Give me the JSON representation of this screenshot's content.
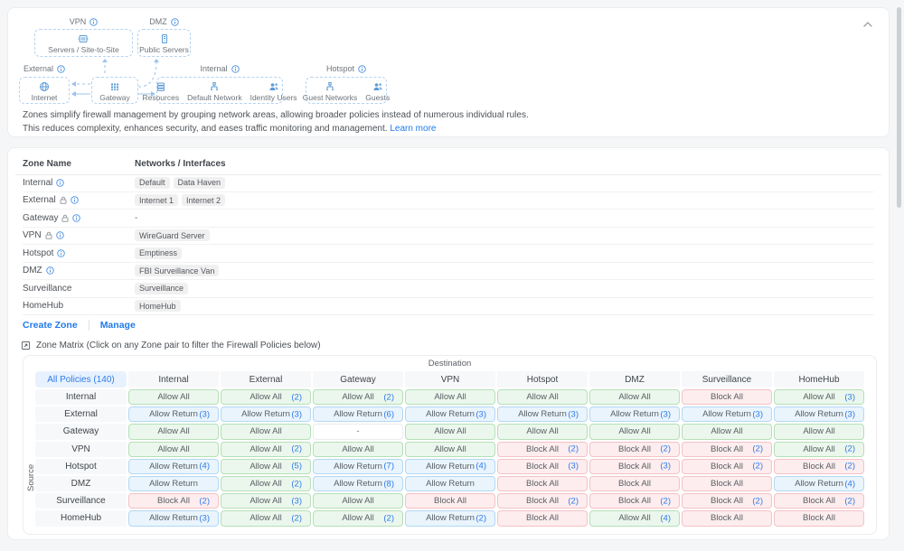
{
  "colors": {
    "accent": "#1f7aec",
    "allow_bg": "#ebf7ec",
    "allow_border": "#b5dfb8",
    "return_bg": "#e9f4fc",
    "return_border": "#b3d7f3",
    "block_bg": "#fdedee",
    "block_border": "#f3c2c6",
    "chip_bg": "#f0f0f1"
  },
  "diagram": {
    "gateway_label": "Gateway",
    "zones": [
      {
        "label": "VPN",
        "items": [
          {
            "name": "Servers / Site-to-Site",
            "icon": "vpn-server-icon"
          }
        ]
      },
      {
        "label": "DMZ",
        "items": [
          {
            "name": "Public Servers",
            "icon": "public-server-icon"
          }
        ]
      },
      {
        "label": "External",
        "items": [
          {
            "name": "Internet",
            "icon": "globe-icon"
          }
        ]
      },
      {
        "label": "Internal",
        "items": [
          {
            "name": "Resources",
            "icon": "resources-icon"
          },
          {
            "name": "Default Network",
            "icon": "network-icon"
          },
          {
            "name": "Identity Users",
            "icon": "users-icon"
          }
        ]
      },
      {
        "label": "Hotspot",
        "items": [
          {
            "name": "Guest Networks",
            "icon": "network-icon"
          },
          {
            "name": "Guests",
            "icon": "users-icon"
          }
        ]
      }
    ]
  },
  "description": {
    "line1": "Zones simplify firewall management by grouping network areas, allowing broader policies instead of numerous individual rules.",
    "line2": "This reduces complexity, enhances security, and eases traffic monitoring and management.",
    "learn_more": "Learn more"
  },
  "zone_table": {
    "columns": [
      "Zone Name",
      "Networks / Interfaces"
    ],
    "rows": [
      {
        "name": "Internal",
        "lock": false,
        "info": true,
        "networks": [
          "Default",
          "Data Haven"
        ]
      },
      {
        "name": "External",
        "lock": true,
        "info": true,
        "networks": [
          "Internet 1",
          "Internet 2"
        ]
      },
      {
        "name": "Gateway",
        "lock": true,
        "info": true,
        "networks": [],
        "empty": "-"
      },
      {
        "name": "VPN",
        "lock": true,
        "info": true,
        "networks": [
          "WireGuard Server"
        ]
      },
      {
        "name": "Hotspot",
        "lock": false,
        "info": true,
        "networks": [
          "Emptiness"
        ]
      },
      {
        "name": "DMZ",
        "lock": false,
        "info": true,
        "networks": [
          "FBI Surveillance Van"
        ]
      },
      {
        "name": "Surveillance",
        "lock": false,
        "info": false,
        "networks": [
          "Surveillance"
        ]
      },
      {
        "name": "HomeHub",
        "lock": false,
        "info": false,
        "networks": [
          "HomeHub"
        ]
      }
    ],
    "actions": {
      "create": "Create Zone",
      "manage": "Manage"
    }
  },
  "matrix": {
    "title": "Zone Matrix (Click on any Zone pair to filter the Firewall Policies below)",
    "destination_label": "Destination",
    "source_label": "Source",
    "all_policies": "All Policies (140)",
    "columns": [
      "Internal",
      "External",
      "Gateway",
      "VPN",
      "Hotspot",
      "DMZ",
      "Surveillance",
      "HomeHub"
    ],
    "rows": [
      {
        "source": "Internal",
        "cells": [
          {
            "label": "Allow All",
            "type": "allow"
          },
          {
            "label": "Allow All",
            "type": "allow",
            "count": "(2)"
          },
          {
            "label": "Allow All",
            "type": "allow",
            "count": "(2)"
          },
          {
            "label": "Allow All",
            "type": "allow"
          },
          {
            "label": "Allow All",
            "type": "allow"
          },
          {
            "label": "Allow All",
            "type": "allow"
          },
          {
            "label": "Block All",
            "type": "block"
          },
          {
            "label": "Allow All",
            "type": "allow",
            "count": "(3)"
          }
        ]
      },
      {
        "source": "External",
        "cells": [
          {
            "label": "Allow Return",
            "type": "return",
            "count": "(3)"
          },
          {
            "label": "Allow Return",
            "type": "return",
            "count": "(3)"
          },
          {
            "label": "Allow Return",
            "type": "return",
            "count": "(6)"
          },
          {
            "label": "Allow Return",
            "type": "return",
            "count": "(3)"
          },
          {
            "label": "Allow Return",
            "type": "return",
            "count": "(3)"
          },
          {
            "label": "Allow Return",
            "type": "return",
            "count": "(3)"
          },
          {
            "label": "Allow Return",
            "type": "return",
            "count": "(3)"
          },
          {
            "label": "Allow Return",
            "type": "return",
            "count": "(3)"
          }
        ]
      },
      {
        "source": "Gateway",
        "cells": [
          {
            "label": "Allow All",
            "type": "allow"
          },
          {
            "label": "Allow All",
            "type": "allow"
          },
          {
            "label": "-",
            "type": "none"
          },
          {
            "label": "Allow All",
            "type": "allow"
          },
          {
            "label": "Allow All",
            "type": "allow"
          },
          {
            "label": "Allow All",
            "type": "allow"
          },
          {
            "label": "Allow All",
            "type": "allow"
          },
          {
            "label": "Allow All",
            "type": "allow"
          }
        ]
      },
      {
        "source": "VPN",
        "cells": [
          {
            "label": "Allow All",
            "type": "allow"
          },
          {
            "label": "Allow All",
            "type": "allow",
            "count": "(2)"
          },
          {
            "label": "Allow All",
            "type": "allow"
          },
          {
            "label": "Allow All",
            "type": "allow"
          },
          {
            "label": "Block All",
            "type": "block",
            "count": "(2)"
          },
          {
            "label": "Block All",
            "type": "block",
            "count": "(2)"
          },
          {
            "label": "Block All",
            "type": "block",
            "count": "(2)"
          },
          {
            "label": "Allow All",
            "type": "allow",
            "count": "(2)"
          }
        ]
      },
      {
        "source": "Hotspot",
        "cells": [
          {
            "label": "Allow Return",
            "type": "return",
            "count": "(4)"
          },
          {
            "label": "Allow All",
            "type": "allow",
            "count": "(5)"
          },
          {
            "label": "Allow Return",
            "type": "return",
            "count": "(7)"
          },
          {
            "label": "Allow Return",
            "type": "return",
            "count": "(4)"
          },
          {
            "label": "Block All",
            "type": "block",
            "count": "(3)"
          },
          {
            "label": "Block All",
            "type": "block",
            "count": "(3)"
          },
          {
            "label": "Block All",
            "type": "block",
            "count": "(2)"
          },
          {
            "label": "Block All",
            "type": "block",
            "count": "(2)"
          }
        ]
      },
      {
        "source": "DMZ",
        "cells": [
          {
            "label": "Allow Return",
            "type": "return"
          },
          {
            "label": "Allow All",
            "type": "allow",
            "count": "(2)"
          },
          {
            "label": "Allow Return",
            "type": "return",
            "count": "(8)"
          },
          {
            "label": "Allow Return",
            "type": "return"
          },
          {
            "label": "Block All",
            "type": "block"
          },
          {
            "label": "Block All",
            "type": "block"
          },
          {
            "label": "Block All",
            "type": "block"
          },
          {
            "label": "Allow Return",
            "type": "return",
            "count": "(4)"
          }
        ]
      },
      {
        "source": "Surveillance",
        "cells": [
          {
            "label": "Block All",
            "type": "block",
            "count": "(2)"
          },
          {
            "label": "Allow All",
            "type": "allow",
            "count": "(3)"
          },
          {
            "label": "Allow All",
            "type": "allow"
          },
          {
            "label": "Block All",
            "type": "block"
          },
          {
            "label": "Block All",
            "type": "block",
            "count": "(2)"
          },
          {
            "label": "Block All",
            "type": "block",
            "count": "(2)"
          },
          {
            "label": "Block All",
            "type": "block",
            "count": "(2)"
          },
          {
            "label": "Block All",
            "type": "block",
            "count": "(2)"
          }
        ]
      },
      {
        "source": "HomeHub",
        "cells": [
          {
            "label": "Allow Return",
            "type": "return",
            "count": "(3)"
          },
          {
            "label": "Allow All",
            "type": "allow",
            "count": "(2)"
          },
          {
            "label": "Allow All",
            "type": "allow",
            "count": "(2)"
          },
          {
            "label": "Allow Return",
            "type": "return",
            "count": "(2)"
          },
          {
            "label": "Block All",
            "type": "block"
          },
          {
            "label": "Allow All",
            "type": "allow",
            "count": "(4)"
          },
          {
            "label": "Block All",
            "type": "block"
          },
          {
            "label": "Block All",
            "type": "block"
          }
        ]
      }
    ]
  }
}
